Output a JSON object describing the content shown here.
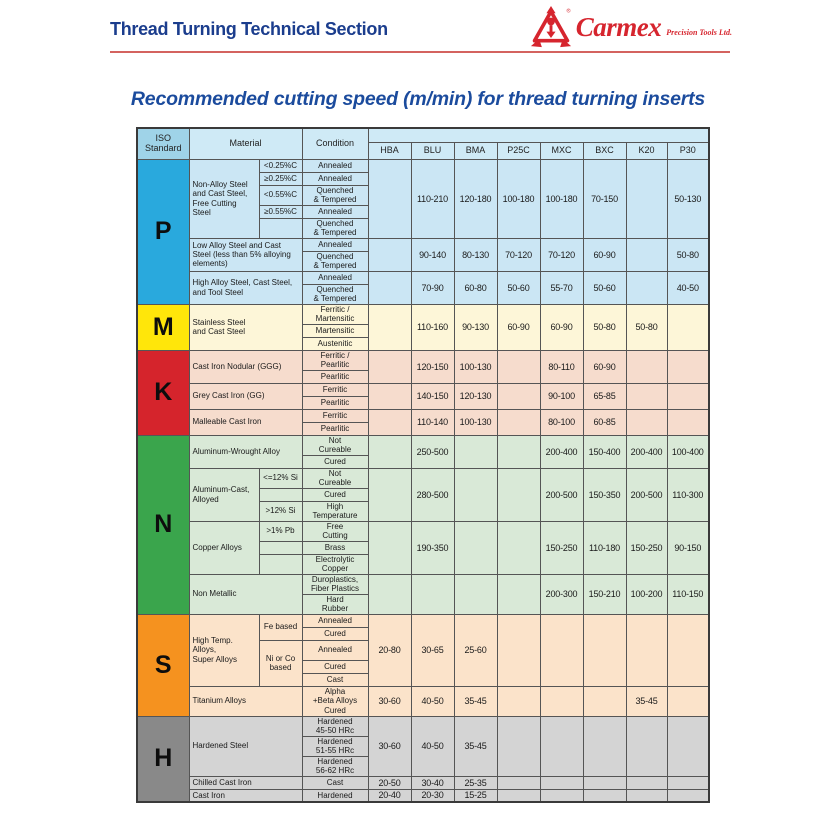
{
  "header": {
    "doc_title": "Thread Turning Technical Section",
    "brand_name": "Carmex",
    "brand_tagline": "Precision Tools Ltd."
  },
  "page_title": "Recommended cutting speed (m/min) for thread turning inserts",
  "colors": {
    "doc_title_blue": "#1b3d8d",
    "page_title_blue": "#1b4b9d",
    "brand_red": "#d6252e",
    "rule_red": "#d4635f",
    "header_iso_bg": "#9fd3e8",
    "header_bg": "#cfeaf6",
    "p_blue": "#29a9dd",
    "m_yellow": "#ffe60a",
    "k_red": "#d5242c",
    "n_green": "#3aa54c",
    "s_orange": "#f5921f",
    "h_gray": "#898989"
  },
  "table": {
    "corner": {
      "iso": "ISO\nStandard",
      "material": "Material",
      "condition": "Condition"
    },
    "columns": [
      "HBA",
      "BLU",
      "BMA",
      "P25C",
      "MXC",
      "BXC",
      "K20",
      "P30"
    ],
    "sections": [
      {
        "letter": "P",
        "letter_bg": "#29a9dd",
        "row_bg": "#cbe6f4",
        "groups": [
          {
            "material": "Non-Alloy Steel\nand Cast Steel,\nFree Cutting Steel",
            "has_sub": true,
            "rows": [
              {
                "sub": "<0.25%C",
                "cond": "Annealed"
              },
              {
                "sub": "≥0.25%C",
                "cond": "Annealed"
              },
              {
                "sub": "<0.55%C",
                "cond": "Quenched\n& Tempered"
              },
              {
                "sub": "≥0.55%C",
                "cond": "Annealed"
              },
              {
                "sub": "",
                "cond": "Quenched\n& Tempered"
              }
            ],
            "values": [
              "",
              "110-210",
              "120-180",
              "100-180",
              "100-180",
              "70-150",
              "",
              "50-130"
            ]
          },
          {
            "material": "Low Alloy Steel and Cast\nSteel (less than 5% alloying\nelements)",
            "has_sub": false,
            "rows": [
              {
                "cond": "Annealed"
              },
              {
                "cond": "Quenched\n& Tempered"
              }
            ],
            "values": [
              "",
              "90-140",
              "80-130",
              "70-120",
              "70-120",
              "60-90",
              "",
              "50-80"
            ]
          },
          {
            "material": "High Alloy Steel, Cast Steel,\nand Tool Steel",
            "has_sub": false,
            "rows": [
              {
                "cond": "Annealed"
              },
              {
                "cond": "Quenched\n& Tempered"
              }
            ],
            "values": [
              "",
              "70-90",
              "60-80",
              "50-60",
              "55-70",
              "50-60",
              "",
              "40-50"
            ]
          }
        ]
      },
      {
        "letter": "M",
        "letter_bg": "#ffe60a",
        "row_bg": "#fdf6d8",
        "groups": [
          {
            "material": "Stainless Steel\nand Cast Steel",
            "has_sub": false,
            "rows": [
              {
                "cond": "Ferritic /\nMartensitic"
              },
              {
                "cond": "Martensitic"
              },
              {
                "cond": "Austenitic"
              }
            ],
            "values": [
              "",
              "110-160",
              "90-130",
              "60-90",
              "60-90",
              "50-80",
              "50-80",
              ""
            ]
          }
        ]
      },
      {
        "letter": "K",
        "letter_bg": "#d5242c",
        "row_bg": "#f6dccd",
        "groups": [
          {
            "material": "Cast Iron Nodular (GGG)",
            "has_sub": false,
            "rows": [
              {
                "cond": "Ferritic /\nPearlitic"
              },
              {
                "cond": "Pearlitic"
              }
            ],
            "values": [
              "",
              "120-150",
              "100-130",
              "",
              "80-110",
              "60-90",
              "",
              ""
            ]
          },
          {
            "material": "Grey Cast Iron (GG)",
            "has_sub": false,
            "rows": [
              {
                "cond": "Ferritic"
              },
              {
                "cond": "Pearlitic"
              }
            ],
            "values": [
              "",
              "140-150",
              "120-130",
              "",
              "90-100",
              "65-85",
              "",
              ""
            ]
          },
          {
            "material": "Malleable Cast Iron",
            "has_sub": false,
            "rows": [
              {
                "cond": "Ferritic"
              },
              {
                "cond": "Pearlitic"
              }
            ],
            "values": [
              "",
              "110-140",
              "100-130",
              "",
              "80-100",
              "60-85",
              "",
              ""
            ]
          }
        ]
      },
      {
        "letter": "N",
        "letter_bg": "#3aa54c",
        "row_bg": "#d9e9d7",
        "groups": [
          {
            "material": "Aluminum-Wrought Alloy",
            "has_sub": false,
            "rows": [
              {
                "cond": "Not\nCureable"
              },
              {
                "cond": "Cured"
              }
            ],
            "values": [
              "",
              "250-500",
              "",
              "",
              "200-400",
              "150-400",
              "200-400",
              "100-400"
            ]
          },
          {
            "material": "Aluminum-Cast,\nAlloyed",
            "has_sub": true,
            "rows": [
              {
                "sub": "<=12% Si",
                "cond": "Not\nCureable"
              },
              {
                "sub": "",
                "cond": "Cured"
              },
              {
                "sub": ">12% Si",
                "cond": "High\nTemperature"
              }
            ],
            "values": [
              "",
              "280-500",
              "",
              "",
              "200-500",
              "150-350",
              "200-500",
              "110-300"
            ]
          },
          {
            "material": "Copper Alloys",
            "has_sub": true,
            "rows": [
              {
                "sub": ">1% Pb",
                "cond": "Free\nCutting"
              },
              {
                "sub": "",
                "cond": "Brass"
              },
              {
                "sub": "",
                "cond": "Electrolytic\nCopper"
              }
            ],
            "values": [
              "",
              "190-350",
              "",
              "",
              "150-250",
              "110-180",
              "150-250",
              "90-150"
            ]
          },
          {
            "material": "Non Metallic",
            "has_sub": false,
            "rows": [
              {
                "cond": "Duroplastics,\nFiber Plastics"
              },
              {
                "cond": "Hard\nRubber"
              }
            ],
            "values": [
              "",
              "",
              "",
              "",
              "200-300",
              "150-210",
              "100-200",
              "110-150"
            ]
          }
        ]
      },
      {
        "letter": "S",
        "letter_bg": "#f5921f",
        "row_bg": "#fbe3ca",
        "groups": [
          {
            "material": "High Temp. Alloys,\nSuper Alloys",
            "has_sub": true,
            "rows": [
              {
                "sub": "Fe based",
                "sub_span": 2,
                "cond": "Annealed"
              },
              {
                "sub": null,
                "cond": "Cured"
              },
              {
                "sub": "Ni or Co\nbased",
                "sub_span": 3,
                "cond": "Annealed"
              },
              {
                "sub": null,
                "cond": "Cured"
              },
              {
                "sub": null,
                "cond": "Cast"
              }
            ],
            "values": [
              "20-80",
              "30-65",
              "25-60",
              "",
              "",
              "",
              "",
              ""
            ]
          },
          {
            "material": "Titanium Alloys",
            "has_sub": false,
            "rows": [
              {
                "cond": "Alpha\n+Beta Alloys\nCured"
              }
            ],
            "values": [
              "30-60",
              "40-50",
              "35-45",
              "",
              "",
              "",
              "35-45",
              ""
            ]
          }
        ]
      },
      {
        "letter": "H",
        "letter_bg": "#898989",
        "row_bg": "#d4d4d4",
        "groups": [
          {
            "material": "Hardened Steel",
            "has_sub": false,
            "rows": [
              {
                "cond": "Hardened\n45-50 HRc"
              },
              {
                "cond": "Hardened\n51-55 HRc"
              },
              {
                "cond": "Hardened\n56-62 HRc"
              }
            ],
            "values": [
              "30-60",
              "40-50",
              "35-45",
              "",
              "",
              "",
              "",
              ""
            ]
          },
          {
            "material": "Chilled Cast Iron",
            "has_sub": false,
            "rows": [
              {
                "cond": "Cast"
              }
            ],
            "values": [
              "20-50",
              "30-40",
              "25-35",
              "",
              "",
              "",
              "",
              ""
            ]
          },
          {
            "material": "Cast Iron",
            "has_sub": false,
            "rows": [
              {
                "cond": "Hardened"
              }
            ],
            "values": [
              "20-40",
              "20-30",
              "15-25",
              "",
              "",
              "",
              "",
              ""
            ]
          }
        ]
      }
    ]
  }
}
